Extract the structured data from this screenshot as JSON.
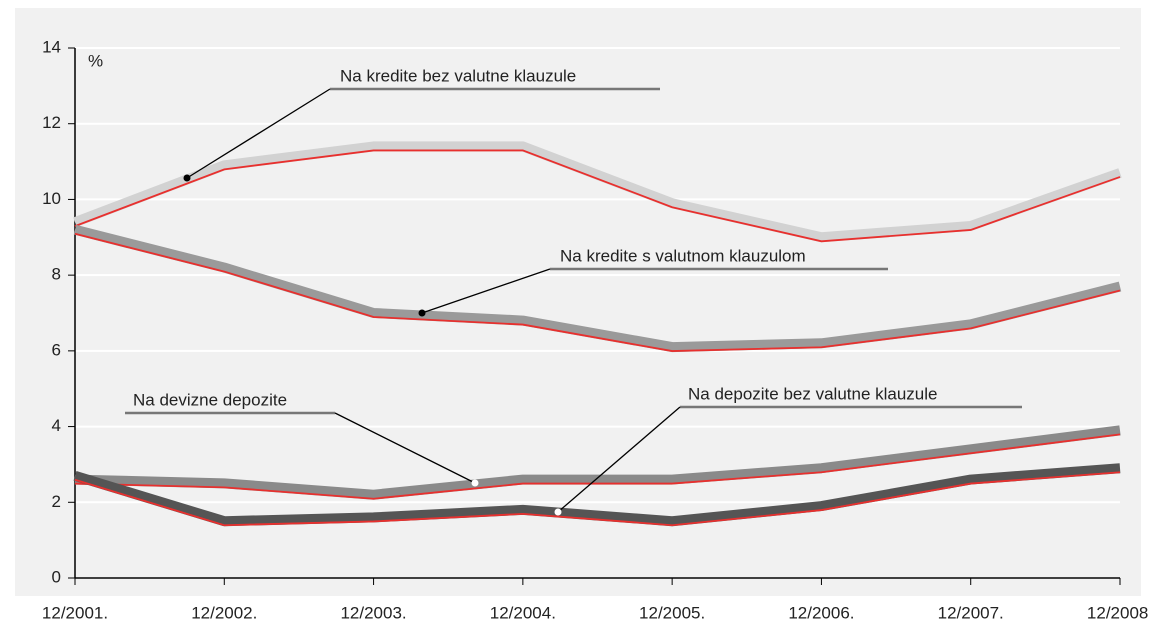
{
  "chart_data": {
    "type": "line",
    "ylabel": "%",
    "categories": [
      "12/2001.",
      "12/2002.",
      "12/2003.",
      "12/2004.",
      "12/2005.",
      "12/2006.",
      "12/2007.",
      "12/2008."
    ],
    "series": [
      {
        "name": "Na kredite bez valutne klauzule",
        "color": "#d2d2d2",
        "values": [
          9.4,
          10.9,
          11.4,
          11.4,
          9.9,
          9.0,
          9.3,
          10.7
        ]
      },
      {
        "name": "Na kredite s valutnom klauzulom",
        "color": "#9a9a9a",
        "values": [
          9.2,
          8.2,
          7.0,
          6.8,
          6.1,
          6.2,
          6.7,
          7.7
        ]
      },
      {
        "name": "Na devizne depozite",
        "color": "#8a8a8a",
        "values": [
          2.6,
          2.5,
          2.2,
          2.6,
          2.6,
          2.9,
          3.4,
          3.9
        ]
      },
      {
        "name": "Na depozite bez valutne klauzule",
        "color": "#555555",
        "values": [
          2.7,
          1.5,
          1.6,
          1.8,
          1.5,
          1.9,
          2.6,
          2.9
        ]
      }
    ],
    "accent_color": "#e8302e",
    "ylim": [
      0,
      14
    ],
    "yticks": [
      0,
      2,
      4,
      6,
      8,
      10,
      12,
      14
    ],
    "grid": true
  }
}
